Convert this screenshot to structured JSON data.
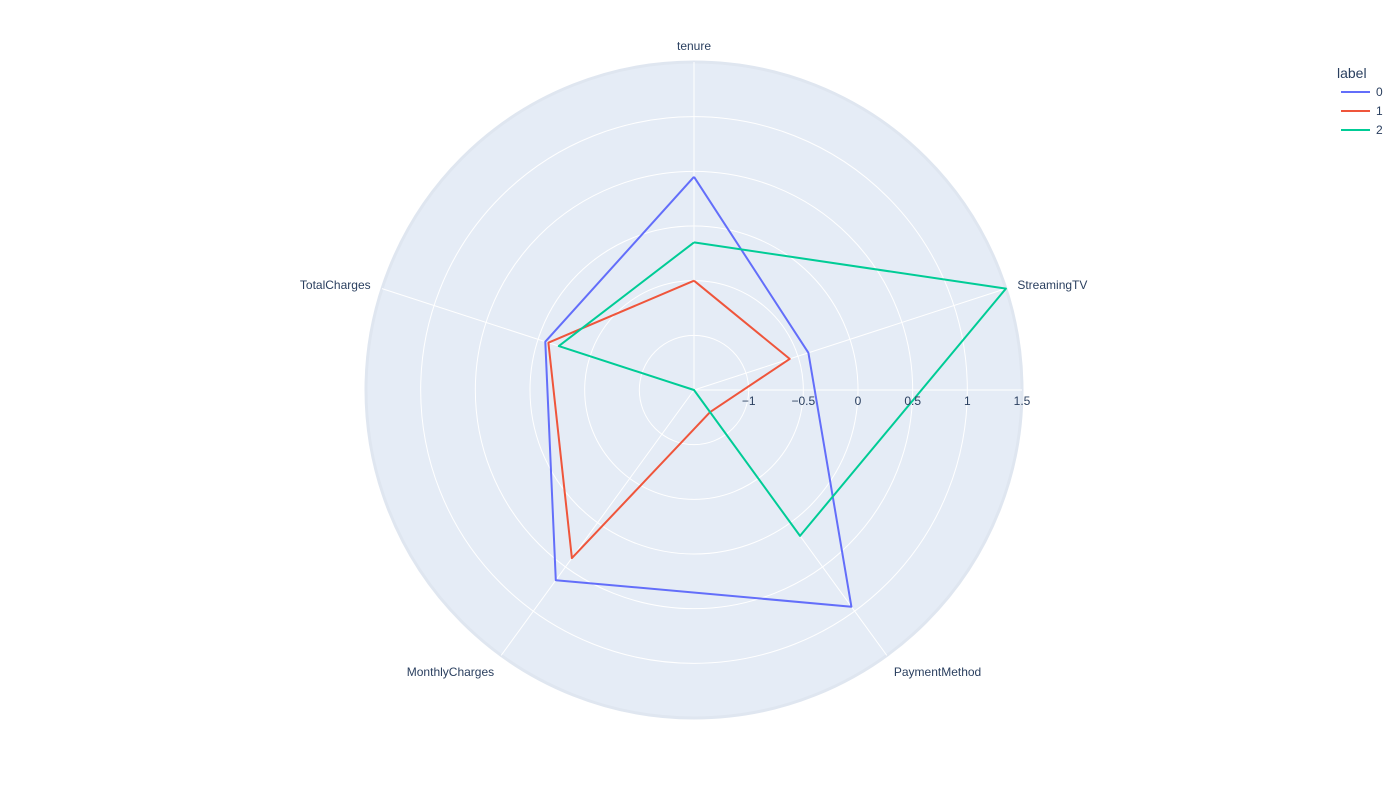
{
  "chart_data": {
    "type": "radar",
    "categories": [
      "tenure",
      "StreamingTV",
      "PaymentMethod",
      "MonthlyCharges",
      "TotalCharges"
    ],
    "radial_range": [
      -1.5,
      1.5
    ],
    "radial_ticks": [
      -1,
      -0.5,
      0,
      0.5,
      1,
      1.5
    ],
    "radial_tick_labels": [
      "−1",
      "−0.5",
      "0",
      "0.5",
      "1",
      "1.5"
    ],
    "grid": true,
    "legend": {
      "title": "label",
      "placement": "top-right"
    },
    "series": [
      {
        "name": "0",
        "color": "#636efa",
        "values": [
          0.45,
          -0.4,
          0.95,
          0.65,
          -0.07
        ]
      },
      {
        "name": "1",
        "color": "#ef553b",
        "values": [
          -0.5,
          -0.58,
          -1.25,
          0.4,
          -0.1
        ]
      },
      {
        "name": "2",
        "color": "#00cc96",
        "values": [
          -0.15,
          1.5,
          0.15,
          -1.5,
          -0.2
        ]
      }
    ],
    "background_color": "#e5ecf6",
    "grid_color": "#ffffff"
  }
}
